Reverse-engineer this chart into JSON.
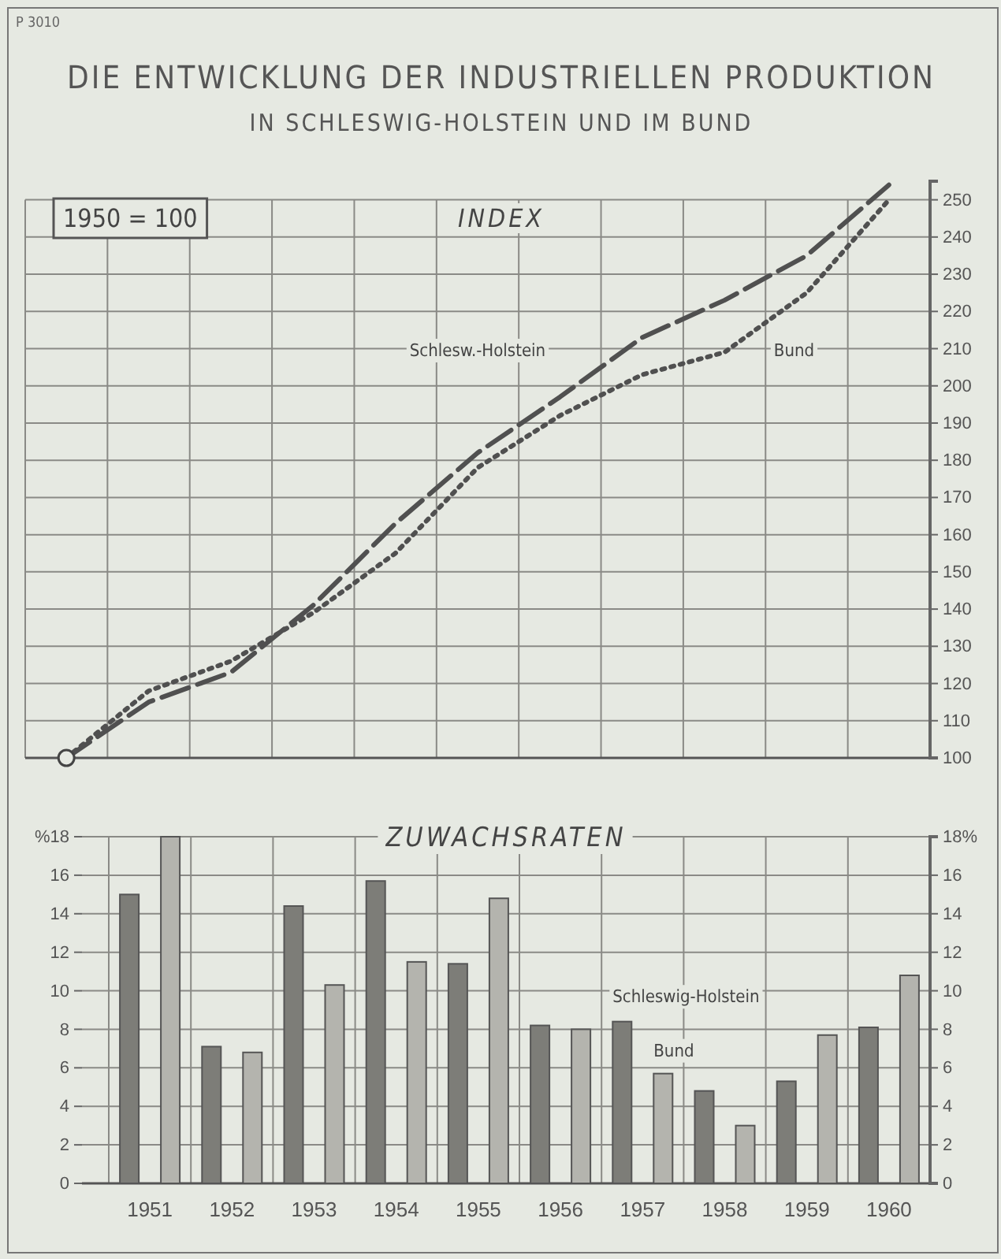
{
  "chart_data": [
    {
      "type": "line",
      "title": "DIE ENTWICKLUNG DER INDUSTRIELLEN PRODUKTION",
      "subtitle": "IN SCHLESWIG-HOLSTEIN UND IM BUND",
      "annotations": [
        "P 3010",
        "1950 = 100",
        "INDEX"
      ],
      "categories": [
        null,
        null,
        null,
        null,
        null,
        null,
        null,
        null,
        null,
        null,
        null
      ],
      "series": [
        {
          "name": "Schlesw.-Holstein",
          "color": "#505050",
          "line_style": "dashed",
          "values": [
            100,
            115,
            123,
            141,
            163,
            182,
            197,
            213,
            223,
            235,
            254
          ]
        },
        {
          "name": "Bund",
          "color": "#505050",
          "line_style": "dotted",
          "values": [
            100,
            118,
            126,
            139,
            155,
            178,
            192,
            203,
            209,
            225,
            250
          ]
        }
      ],
      "ylim": [
        100,
        255
      ],
      "yticks": [
        100,
        110,
        120,
        130,
        140,
        150,
        160,
        170,
        180,
        190,
        200,
        210,
        220,
        230,
        240,
        250
      ],
      "grid": true,
      "tick_labels": "y",
      "legend": false
    },
    {
      "type": "bar",
      "title": "ZUWACHSRATEN",
      "categories": [
        "1951",
        "1952",
        "1953",
        "1954",
        "1955",
        "1956",
        "1957",
        "1958",
        "1959",
        "1960"
      ],
      "series": [
        {
          "name": "Schleswig-Holstein",
          "color": "#7d7d78",
          "values": [
            15,
            7.1,
            14.4,
            15.7,
            11.4,
            8.2,
            8.4,
            4.8,
            5.3,
            8.1
          ]
        },
        {
          "name": "Bund",
          "color": "#b4b4ae",
          "values": [
            18,
            6.8,
            10.3,
            11.5,
            14.8,
            8,
            5.7,
            3,
            7.7,
            10.8
          ]
        }
      ],
      "ylim": [
        0,
        18
      ],
      "yticks": [
        0,
        2,
        4,
        6,
        8,
        10,
        12,
        14,
        16,
        {
          "value": 18,
          "label": "%18"
        }
      ],
      "y2lim": [
        0,
        18
      ],
      "y2ticks": [
        0,
        2,
        4,
        6,
        8,
        10,
        12,
        14,
        16,
        {
          "value": 18,
          "label": "18%"
        }
      ],
      "grid": true,
      "legend": false
    }
  ]
}
